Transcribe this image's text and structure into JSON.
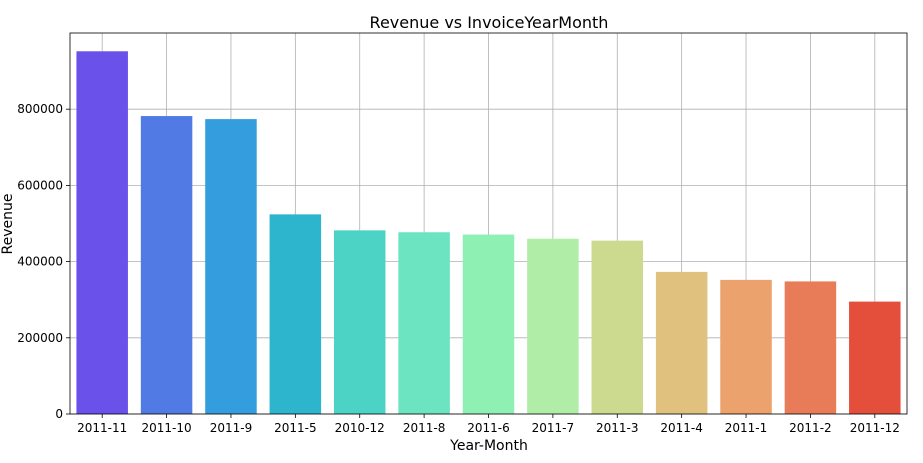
{
  "chart_data": {
    "type": "bar",
    "title": "Revenue vs InvoiceYearMonth",
    "xlabel": "Year-Month",
    "ylabel": "Revenue",
    "categories": [
      "2011-11",
      "2011-10",
      "2011-9",
      "2011-5",
      "2010-12",
      "2011-8",
      "2011-6",
      "2011-7",
      "2011-3",
      "2011-4",
      "2011-1",
      "2011-2",
      "2011-12"
    ],
    "values": [
      952000,
      782000,
      774000,
      524000,
      482000,
      477000,
      471000,
      460000,
      455000,
      373000,
      352000,
      348000,
      295000
    ],
    "colors": [
      "#6a51ea",
      "#517ae4",
      "#349ddd",
      "#2cb5cd",
      "#4dd2c6",
      "#6ce4c1",
      "#8ef0b2",
      "#b0eea8",
      "#ccda8f",
      "#e0c27e",
      "#eba26c",
      "#e87c58",
      "#e44f3b"
    ],
    "ylim": [
      0,
      1000000
    ],
    "yticks": [
      0,
      200000,
      400000,
      600000,
      800000
    ],
    "ytick_labels": [
      "0",
      "200000",
      "400000",
      "600000",
      "800000"
    ],
    "grid": true,
    "legend": "none"
  }
}
